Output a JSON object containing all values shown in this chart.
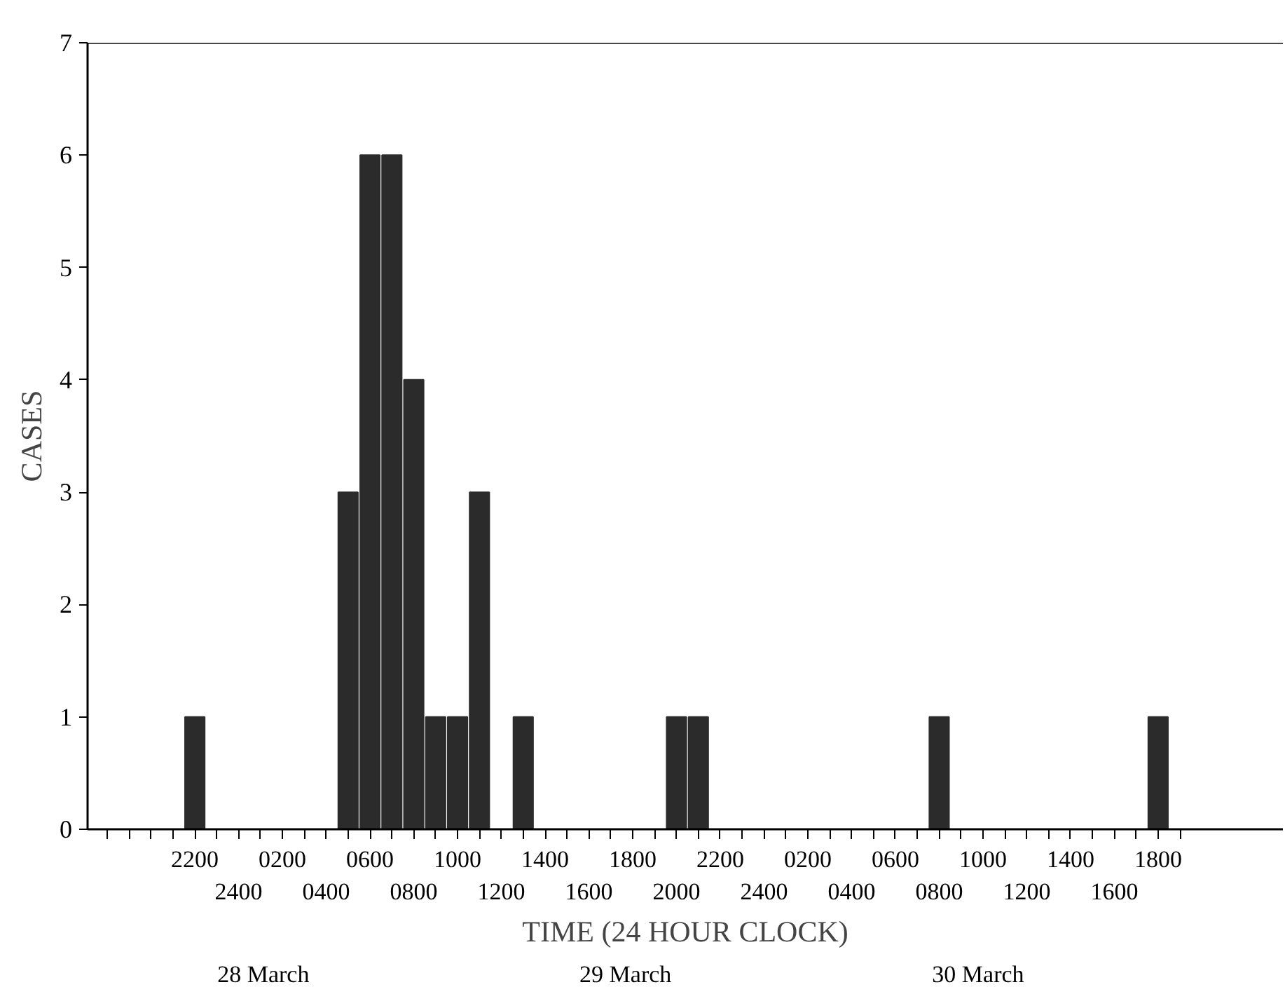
{
  "chart_data": {
    "type": "bar",
    "xlabel": "TIME (24 HOUR CLOCK)",
    "ylabel": "CASES",
    "annotations": [
      "28 March",
      "29 March",
      "30 March"
    ],
    "categories": [
      null,
      null,
      null,
      null,
      "2200",
      null,
      "2400",
      null,
      "0200",
      null,
      "0400",
      null,
      "0600",
      null,
      "0800",
      null,
      "1000",
      null,
      "1200",
      null,
      "1400",
      null,
      "1600",
      null,
      "1800",
      null,
      "2000",
      null,
      "2200",
      null,
      "2400",
      null,
      "0200",
      null,
      "0400",
      null,
      "0600",
      null,
      "0800",
      null,
      "1000",
      null,
      "1200",
      null,
      "1400",
      null,
      "1600",
      null,
      "1800",
      null
    ],
    "values": [
      0,
      0,
      0,
      0,
      1,
      0,
      0,
      0,
      0,
      0,
      0,
      3,
      6,
      6,
      4,
      1,
      1,
      3,
      0,
      1,
      0,
      0,
      0,
      0,
      0,
      0,
      1,
      1,
      0,
      0,
      0,
      0,
      0,
      0,
      0,
      0,
      0,
      0,
      1,
      0,
      0,
      0,
      0,
      0,
      0,
      0,
      0,
      0,
      1,
      0
    ],
    "color": "#2b2b2b",
    "ylim": [
      0,
      7
    ],
    "yticks": [
      0,
      1,
      2,
      3,
      4,
      5,
      6,
      7
    ],
    "grid": false
  }
}
